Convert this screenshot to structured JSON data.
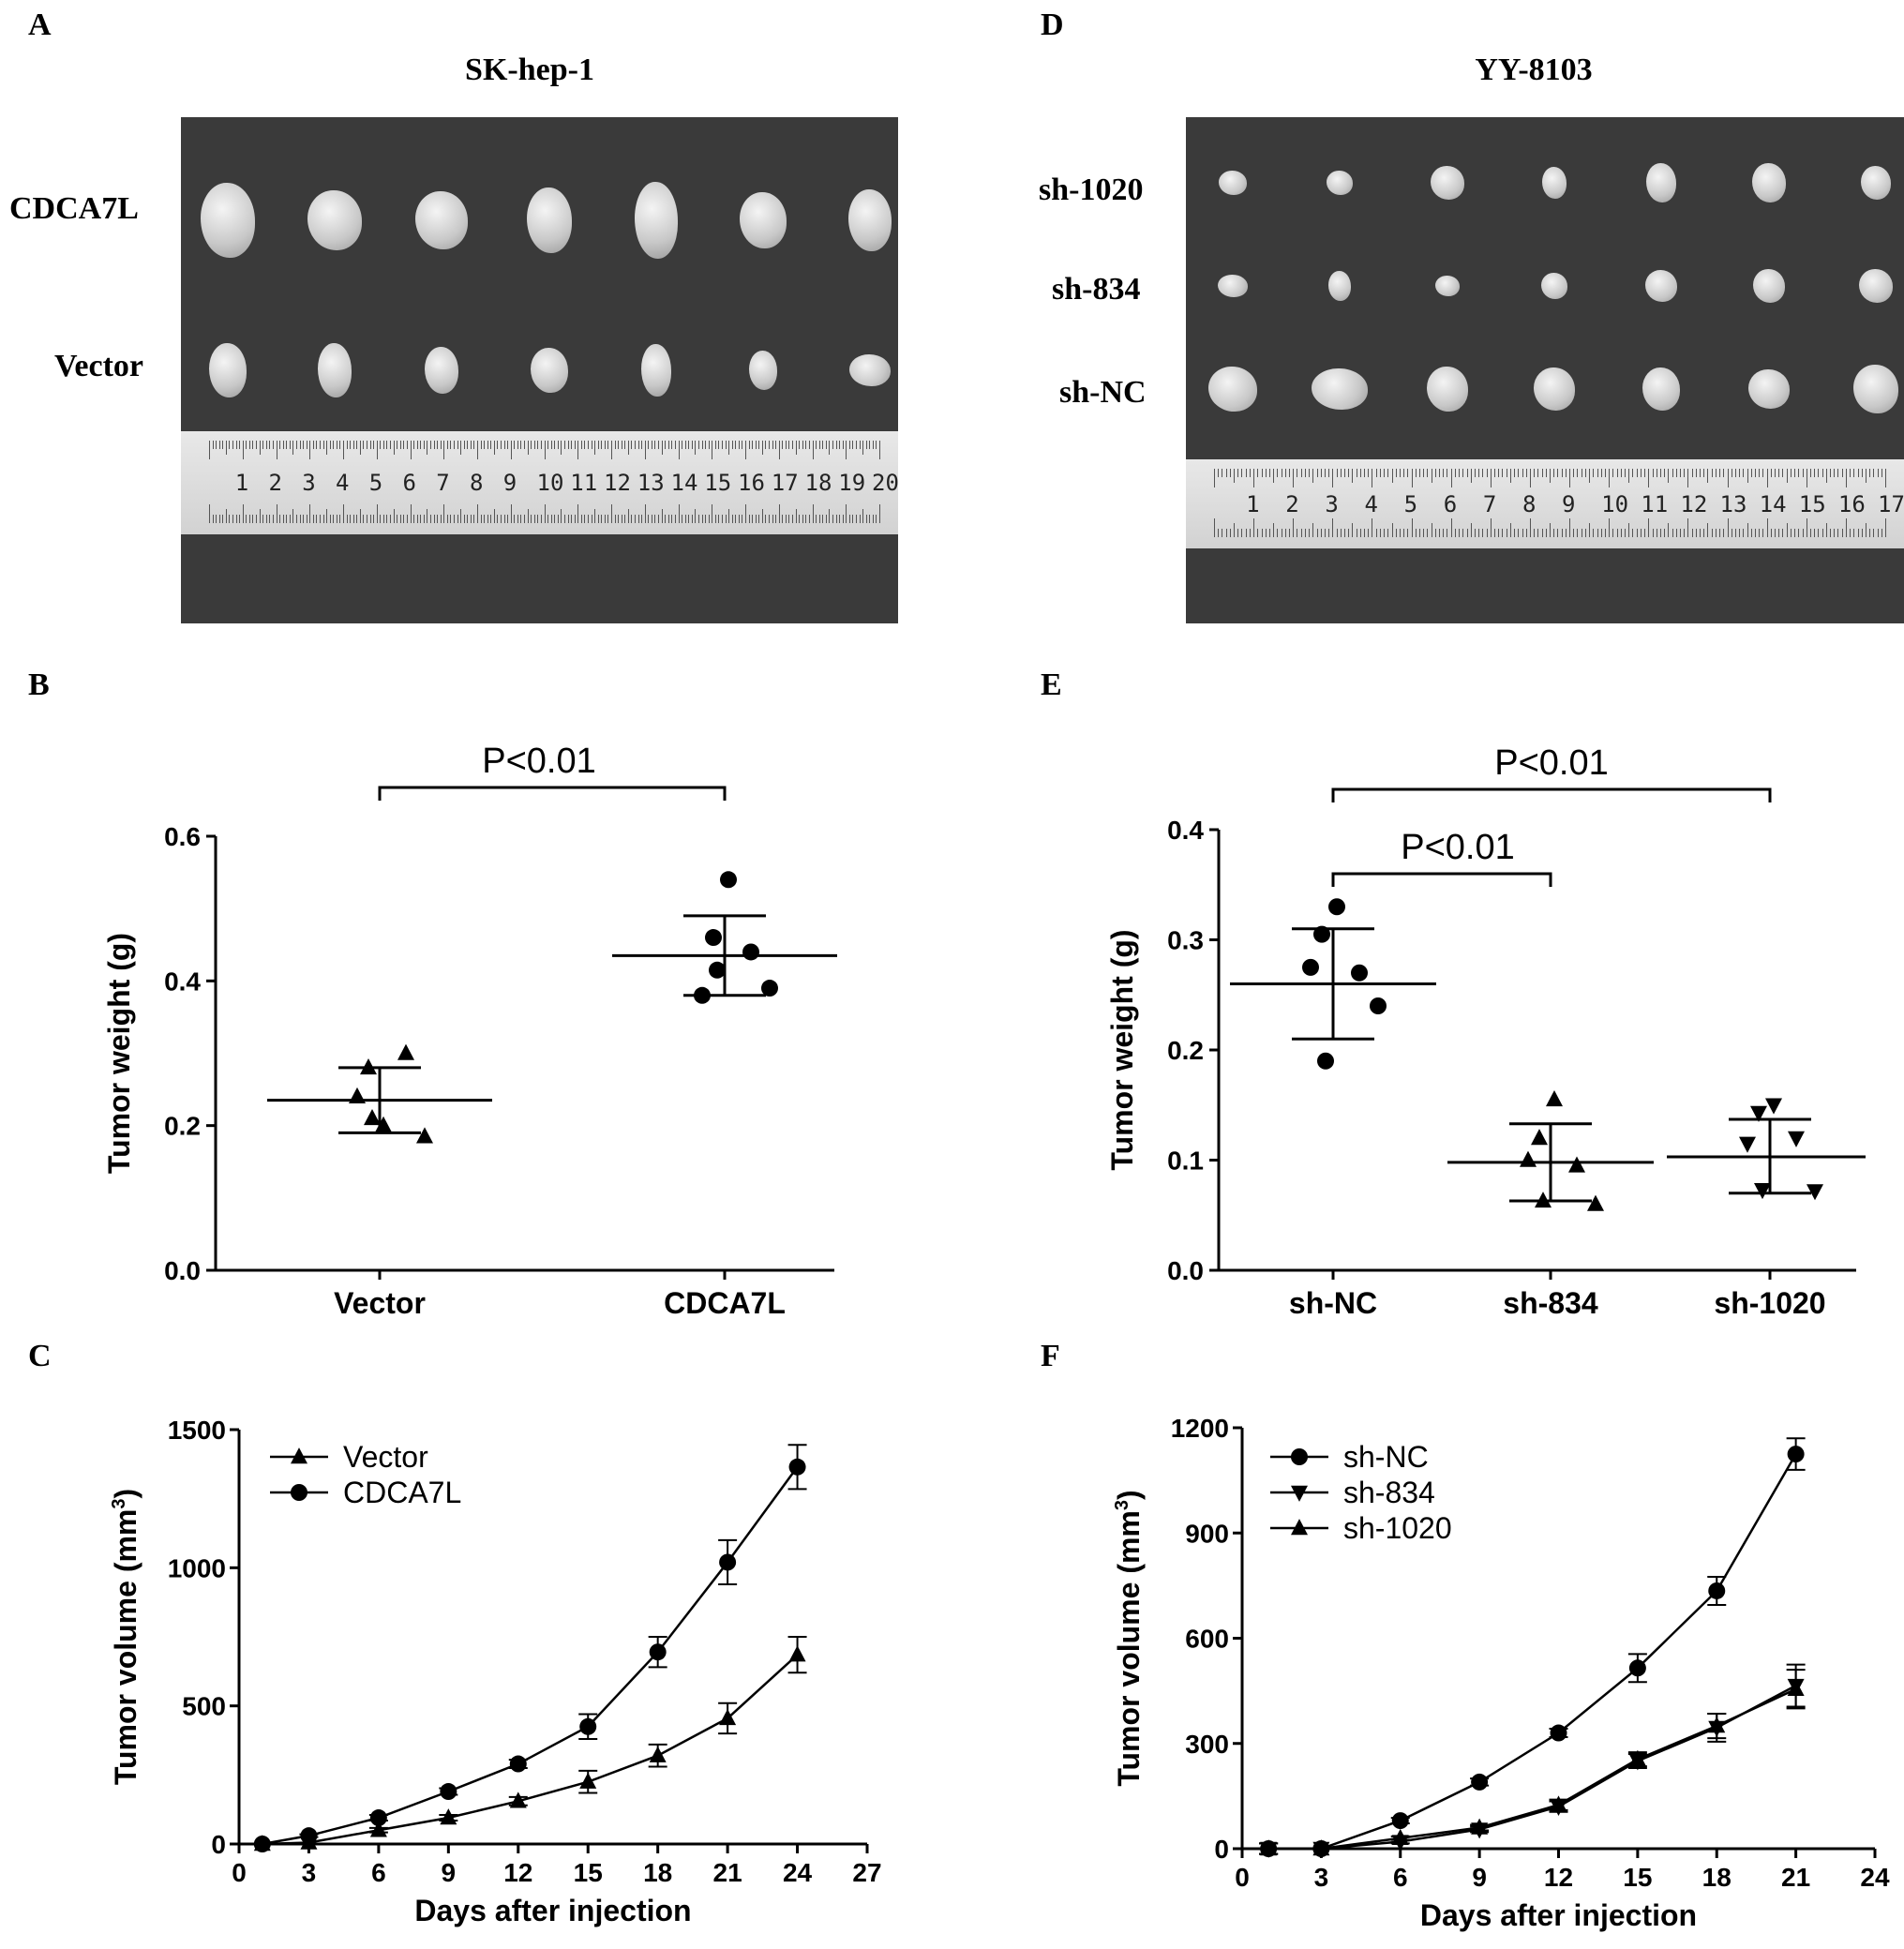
{
  "panels": {
    "A": {
      "letter": "A",
      "title": "SK-hep-1",
      "rows": [
        "CDCA7L",
        "Vector"
      ],
      "ruler_unit": "cm",
      "ruler_numbers": [
        "1",
        "2",
        "3",
        "4",
        "5",
        "6",
        "7",
        "8",
        "9",
        "10",
        "11",
        "12",
        "13",
        "14",
        "15",
        "16",
        "17",
        "18",
        "19",
        "20"
      ]
    },
    "D": {
      "letter": "D",
      "title": "YY-8103",
      "rows": [
        "sh-1020",
        "sh-834",
        "sh-NC"
      ],
      "ruler_numbers": [
        "1",
        "2",
        "3",
        "4",
        "5",
        "6",
        "7",
        "8",
        "9",
        "10",
        "11",
        "12",
        "13",
        "14",
        "15",
        "16",
        "17"
      ]
    },
    "B": {
      "letter": "B"
    },
    "C": {
      "letter": "C"
    },
    "E": {
      "letter": "E"
    },
    "F": {
      "letter": "F"
    }
  },
  "chart_data": [
    {
      "id": "B",
      "type": "scatter",
      "ylabel": "Tumor weight (g)",
      "ylim": [
        0,
        0.6
      ],
      "yticks": [
        "0.0",
        "0.2",
        "0.4",
        "0.6"
      ],
      "categories": [
        "Vector",
        "CDCA7L"
      ],
      "series": [
        {
          "name": "Vector",
          "marker": "triangle",
          "points": [
            0.2,
            0.28,
            0.3,
            0.24,
            0.185,
            0.21
          ],
          "mean": 0.235,
          "sd_low": 0.19,
          "sd_high": 0.28
        },
        {
          "name": "CDCA7L",
          "marker": "circle",
          "points": [
            0.54,
            0.46,
            0.44,
            0.38,
            0.39,
            0.415
          ],
          "mean": 0.435,
          "sd_low": 0.38,
          "sd_high": 0.49
        }
      ],
      "annotations": [
        {
          "text": "P<0.01",
          "from": 0,
          "to": 1
        }
      ]
    },
    {
      "id": "E",
      "type": "scatter",
      "ylabel": "Tumor weight (g)",
      "ylim": [
        0,
        0.4
      ],
      "yticks": [
        "0.0",
        "0.1",
        "0.2",
        "0.3",
        "0.4"
      ],
      "categories": [
        "sh-NC",
        "sh-834",
        "sh-1020"
      ],
      "series": [
        {
          "name": "sh-NC",
          "marker": "circle",
          "points": [
            0.33,
            0.305,
            0.27,
            0.275,
            0.24,
            0.19
          ],
          "mean": 0.26,
          "sd_low": 0.21,
          "sd_high": 0.31
        },
        {
          "name": "sh-834",
          "marker": "triangle",
          "points": [
            0.155,
            0.12,
            0.095,
            0.1,
            0.06,
            0.063
          ],
          "mean": 0.098,
          "sd_low": 0.063,
          "sd_high": 0.133
        },
        {
          "name": "sh-1020",
          "marker": "triangle-down",
          "points": [
            0.15,
            0.143,
            0.12,
            0.115,
            0.072,
            0.073
          ],
          "mean": 0.103,
          "sd_low": 0.07,
          "sd_high": 0.137
        }
      ],
      "annotations": [
        {
          "text": "P<0.01",
          "from": 0,
          "to": 1
        },
        {
          "text": "P<0.01",
          "from": 0,
          "to": 2
        }
      ]
    },
    {
      "id": "C",
      "type": "line",
      "xlabel": "Days after injection",
      "ylabel": "Tumor volume (mm",
      "ylabel_sup": "3",
      "ylabel_end": ")",
      "xlim": [
        0,
        27
      ],
      "ylim": [
        0,
        1500
      ],
      "xticks": [
        "0",
        "3",
        "6",
        "9",
        "12",
        "15",
        "18",
        "21",
        "24",
        "27"
      ],
      "yticks": [
        "0",
        "500",
        "1000",
        "1500"
      ],
      "legend": "top-left",
      "series": [
        {
          "name": "Vector",
          "marker": "triangle",
          "x": [
            1,
            3,
            6,
            9,
            12,
            15,
            18,
            21,
            24
          ],
          "y": [
            0,
            5,
            50,
            95,
            155,
            225,
            320,
            455,
            685
          ],
          "err": [
            0,
            0,
            8,
            10,
            15,
            40,
            40,
            55,
            65
          ]
        },
        {
          "name": "CDCA7L",
          "marker": "circle",
          "x": [
            1,
            3,
            6,
            9,
            12,
            15,
            18,
            21,
            24
          ],
          "y": [
            0,
            30,
            95,
            190,
            290,
            425,
            695,
            1020,
            1365
          ],
          "err": [
            0,
            5,
            10,
            12,
            15,
            45,
            55,
            80,
            80
          ]
        }
      ]
    },
    {
      "id": "F",
      "type": "line",
      "xlabel": "Days after injection",
      "ylabel": "Tumor volume (mm",
      "ylabel_sup": "3",
      "ylabel_end": ")",
      "xlim": [
        0,
        24
      ],
      "ylim": [
        0,
        1200
      ],
      "xticks": [
        "0",
        "3",
        "6",
        "9",
        "12",
        "15",
        "18",
        "21",
        "24"
      ],
      "yticks": [
        "0",
        "300",
        "600",
        "900",
        "1200"
      ],
      "legend": "top-left",
      "series": [
        {
          "name": "sh-NC",
          "marker": "circle",
          "x": [
            1,
            3,
            6,
            9,
            12,
            15,
            18,
            21
          ],
          "y": [
            0,
            0,
            80,
            190,
            330,
            515,
            735,
            1125
          ],
          "err": [
            15,
            0,
            8,
            10,
            12,
            40,
            40,
            45
          ]
        },
        {
          "name": "sh-834",
          "marker": "triangle-down",
          "x": [
            1,
            3,
            6,
            9,
            12,
            15,
            18,
            21
          ],
          "y": [
            0,
            0,
            20,
            55,
            120,
            250,
            345,
            465
          ],
          "err": [
            15,
            0,
            5,
            8,
            15,
            20,
            40,
            60
          ]
        },
        {
          "name": "sh-1020",
          "marker": "triangle",
          "x": [
            1,
            3,
            6,
            9,
            12,
            15,
            18,
            21
          ],
          "y": [
            0,
            0,
            30,
            60,
            125,
            255,
            350,
            455
          ],
          "err": [
            15,
            0,
            5,
            8,
            15,
            20,
            35,
            55
          ]
        }
      ]
    }
  ]
}
